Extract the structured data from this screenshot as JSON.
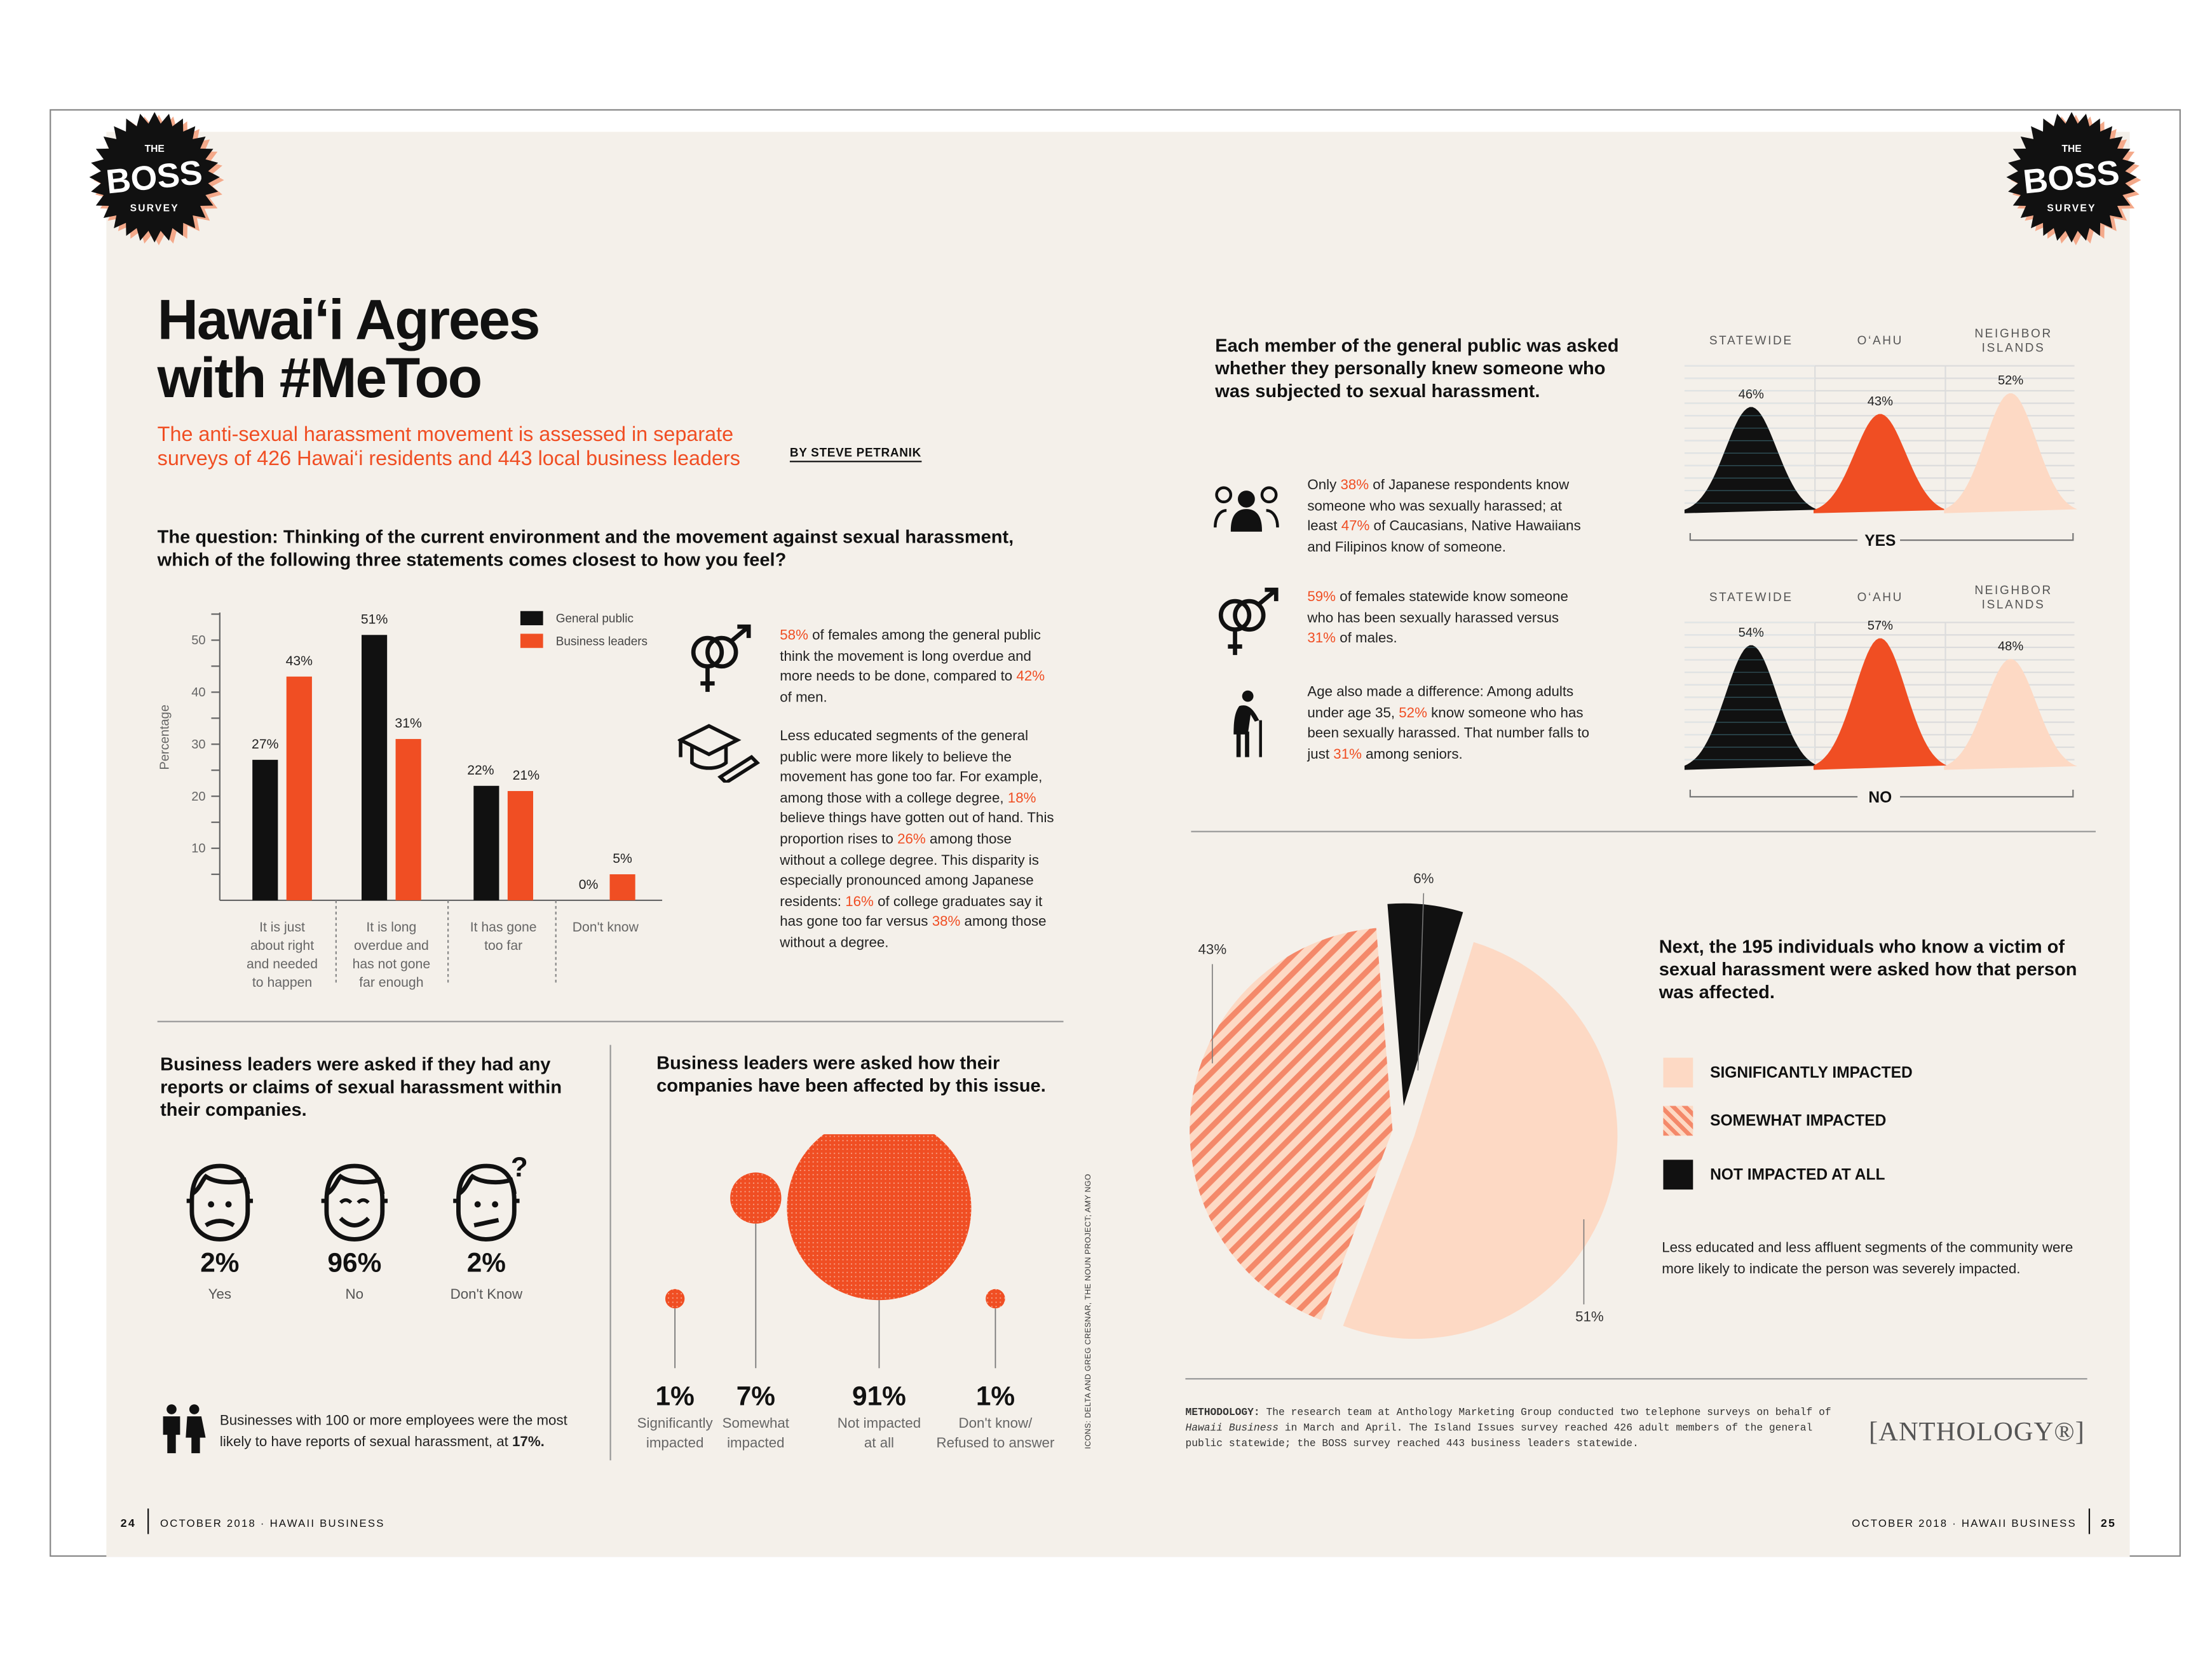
{
  "badge": {
    "top": "THE",
    "main": "BOSS",
    "bottom": "SURVEY"
  },
  "left": {
    "title_line1": "Hawai‘i Agrees",
    "title_line2": "with #MeToo",
    "subtitle": "The anti-sexual harassment movement is assessed in separate surveys of 426 Hawai‘i residents and 443 local business leaders",
    "byline": "BY STEVE PETRANIK",
    "question": "The question: Thinking of the current environment and the movement against sexual harassment, which of the following three statements comes closest to how you feel?",
    "notes": [
      {
        "icon": "gender-symbol-icon",
        "segments": [
          {
            "t": "58%",
            "hl": true
          },
          {
            "t": " of females among the general public think the movement is long overdue and more needs to be done, compared to "
          },
          {
            "t": "42%",
            "hl": true
          },
          {
            "t": " of men."
          }
        ]
      },
      {
        "icon": "graduation-cap-icon",
        "segments": [
          {
            "t": "Less educated segments of the general public were more likely to believe the movement has gone too far. For example, among those with a college degree, "
          },
          {
            "t": "18%",
            "hl": true
          },
          {
            "t": " believe things have gotten out of hand. This proportion rises to "
          },
          {
            "t": "26%",
            "hl": true
          },
          {
            "t": " among those without a college degree. This disparity is especially pronounced among Japanese residents: "
          },
          {
            "t": "16%",
            "hl": true
          },
          {
            "t": " of college graduates say it has gone too far versus "
          },
          {
            "t": "38%",
            "hl": true
          },
          {
            "t": " among those without a degree."
          }
        ]
      }
    ],
    "reports": {
      "heading": "Business leaders were asked if they had any reports or claims of sexual harassment within their companies.",
      "items": [
        {
          "icon": "worried-face-icon",
          "value": "2%",
          "label": "Yes"
        },
        {
          "icon": "smiling-face-icon",
          "value": "96%",
          "label": "No"
        },
        {
          "icon": "confused-face-icon",
          "value": "2%",
          "label": "Don't Know"
        }
      ],
      "note_segments": [
        {
          "t": "Businesses with 100 or more employees were the most likely to have reports of sexual harassment, at "
        },
        {
          "t": "17%.",
          "b": true
        }
      ]
    },
    "affected": {
      "heading": "Business leaders were asked how their companies have been affected by this issue."
    },
    "credit": "ICONS: DELTA AND GREG CRESNAR, THE NOUN PROJECT; AMY NGO",
    "footer": {
      "page": "24",
      "text": "OCTOBER 2018 · HAWAII BUSINESS"
    }
  },
  "right": {
    "heading": "Each member of the general public was asked whether they personally knew someone who was subjected to sexual harassment.",
    "notes": [
      {
        "icon": "people-group-icon",
        "segments": [
          {
            "t": "Only "
          },
          {
            "t": "38%",
            "hl": true
          },
          {
            "t": " of Japanese respondents know someone who was sexually harassed; at least "
          },
          {
            "t": "47%",
            "hl": true
          },
          {
            "t": " of Caucasians, Native Hawaiians and Filipinos know of someone."
          }
        ]
      },
      {
        "icon": "gender-symbol-icon",
        "segments": [
          {
            "t": "59%",
            "hl": true
          },
          {
            "t": " of females statewide know someone who has been sexually harassed versus "
          },
          {
            "t": "31%",
            "hl": true
          },
          {
            "t": " of males."
          }
        ]
      },
      {
        "icon": "senior-with-cane-icon",
        "segments": [
          {
            "t": "Age also made a difference: Among adults under age 35, "
          },
          {
            "t": "52%",
            "hl": true
          },
          {
            "t": " know someone who has been sexually harassed. That number falls to just "
          },
          {
            "t": "31%",
            "hl": true
          },
          {
            "t": " among seniors."
          }
        ]
      }
    ],
    "pie_heading": "Next, the 195 individuals who know a victim of sexual harassment were asked how that person was affected.",
    "pie_note": "Less educated and less affluent segments of the community were more likely to indicate the person was severely impacted.",
    "methodology_label": "METHODOLOGY:",
    "methodology_a": " The research team at Anthology Marketing Group conducted two telephone surveys on behalf of ",
    "methodology_italic": "Hawaii Business",
    "methodology_b": " in March and April. The Island Issues survey reached 426 adult members of the general public statewide; the BOSS survey reached 443 business leaders statewide.",
    "logo": "[ANTHOLOGY®]",
    "footer": {
      "page": "25",
      "text": "OCTOBER 2018 · HAWAII BUSINESS"
    }
  },
  "colors": {
    "accent": "#f04e23",
    "black": "#111111",
    "peach": "#fdd9c4",
    "page": "#f4f0ea"
  },
  "chart_data": [
    {
      "type": "bar",
      "ylabel": "Percentage",
      "yticks": [
        10,
        20,
        30,
        40,
        50
      ],
      "ylim": [
        0,
        55
      ],
      "categories": [
        "It is just about right and needed to happen",
        "It is long overdue and has not gone far enough",
        "It has gone too far",
        "Don't know"
      ],
      "series": [
        {
          "name": "General public",
          "color": "#111111",
          "values": [
            27,
            51,
            22,
            0
          ],
          "labels": [
            "27%",
            "51%",
            "22%",
            "0%"
          ]
        },
        {
          "name": "Business leaders",
          "color": "#f04e23",
          "values": [
            43,
            31,
            21,
            5
          ],
          "labels": [
            "43%",
            "31%",
            "21%",
            "5%"
          ]
        }
      ],
      "legend": "top-right"
    },
    {
      "type": "area",
      "title": "YES",
      "categories": [
        "STATEWIDE",
        "O‘AHU",
        "NEIGHBOR ISLANDS"
      ],
      "values": [
        46,
        43,
        52
      ],
      "labels": [
        "46%",
        "43%",
        "52%"
      ],
      "colors": [
        "#111111",
        "#f04e23",
        "#fdd9c4"
      ]
    },
    {
      "type": "area",
      "title": "NO",
      "categories": [
        "STATEWIDE",
        "O‘AHU",
        "NEIGHBOR ISLANDS"
      ],
      "values": [
        54,
        57,
        48
      ],
      "labels": [
        "54%",
        "57%",
        "48%"
      ],
      "colors": [
        "#111111",
        "#f04e23",
        "#fdd9c4"
      ]
    },
    {
      "type": "scatter",
      "subtype": "bubble",
      "categories": [
        "Significantly impacted",
        "Somewhat impacted",
        "Not impacted at all",
        "Don't know/ Refused to answer"
      ],
      "values": [
        1,
        7,
        91,
        1
      ],
      "labels": [
        "1%",
        "7%",
        "91%",
        "1%"
      ]
    },
    {
      "type": "pie",
      "categories": [
        "SIGNIFICANTLY IMPACTED",
        "SOMEWHAT IMPACTED",
        "NOT IMPACTED AT ALL"
      ],
      "values": [
        51,
        43,
        6
      ],
      "labels": [
        "51%",
        "43%",
        "6%"
      ],
      "fills": [
        "solid peach",
        "hatched",
        "black"
      ],
      "legend": "right"
    }
  ]
}
